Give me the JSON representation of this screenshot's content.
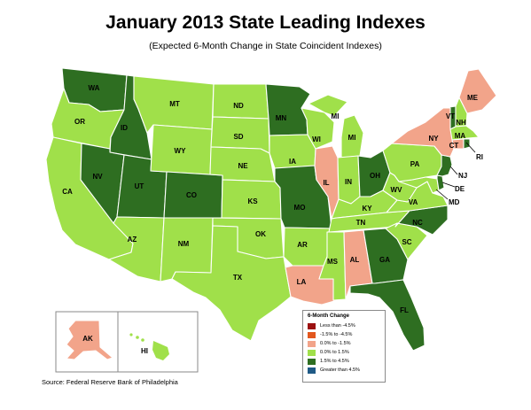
{
  "title": "January 2013 State Leading Indexes",
  "subtitle": "(Expected 6-Month Change in State Coincident Indexes)",
  "source": "Source: Federal Reserve Bank of Philadelphia",
  "colors": {
    "less_than_m45": "#9b1010",
    "m15_to_m45": "#e2571e",
    "zero_to_m15": "#f2a48a",
    "zero_to_15": "#a0e04a",
    "p15_to_45": "#2e6e21",
    "greater_than_45": "#1f5a86"
  },
  "legend": {
    "title": "6-Month Change",
    "items": [
      {
        "key": "less_than_m45",
        "label": "Less than -4.5%"
      },
      {
        "key": "m15_to_m45",
        "label": "-1.5% to -4.5%"
      },
      {
        "key": "zero_to_m15",
        "label": "0.0% to -1.5%"
      },
      {
        "key": "zero_to_15",
        "label": "0.0% to  1.5%"
      },
      {
        "key": "p15_to_45",
        "label": "1.5% to  4.5%"
      },
      {
        "key": "greater_than_45",
        "label": "Greater than 4.5%"
      }
    ]
  },
  "states": {
    "WA": "p15_to_45",
    "OR": "zero_to_15",
    "CA": "zero_to_15",
    "ID": "p15_to_45",
    "NV": "p15_to_45",
    "UT": "p15_to_45",
    "AZ": "zero_to_15",
    "MT": "zero_to_15",
    "WY": "zero_to_15",
    "CO": "p15_to_45",
    "NM": "zero_to_15",
    "ND": "zero_to_15",
    "SD": "zero_to_15",
    "NE": "zero_to_15",
    "KS": "zero_to_15",
    "OK": "zero_to_15",
    "TX": "zero_to_15",
    "MN": "p15_to_45",
    "IA": "zero_to_15",
    "MO": "p15_to_45",
    "AR": "zero_to_15",
    "LA": "zero_to_m15",
    "WI": "zero_to_15",
    "IL": "zero_to_m15",
    "MI": "zero_to_15",
    "IN": "zero_to_15",
    "OH": "p15_to_45",
    "KY": "zero_to_15",
    "TN": "zero_to_15",
    "MS": "zero_to_15",
    "AL": "zero_to_m15",
    "GA": "p15_to_45",
    "FL": "p15_to_45",
    "SC": "zero_to_15",
    "NC": "p15_to_45",
    "VA": "zero_to_15",
    "WV": "zero_to_15",
    "PA": "zero_to_15",
    "NY": "zero_to_m15",
    "VT": "p15_to_45",
    "NH": "zero_to_15",
    "ME": "zero_to_m15",
    "MA": "zero_to_15",
    "CT": "zero_to_m15",
    "RI": "p15_to_45",
    "NJ": "p15_to_45",
    "DE": "p15_to_45",
    "MD": "zero_to_15",
    "AK": "zero_to_m15",
    "HI": "zero_to_15"
  }
}
